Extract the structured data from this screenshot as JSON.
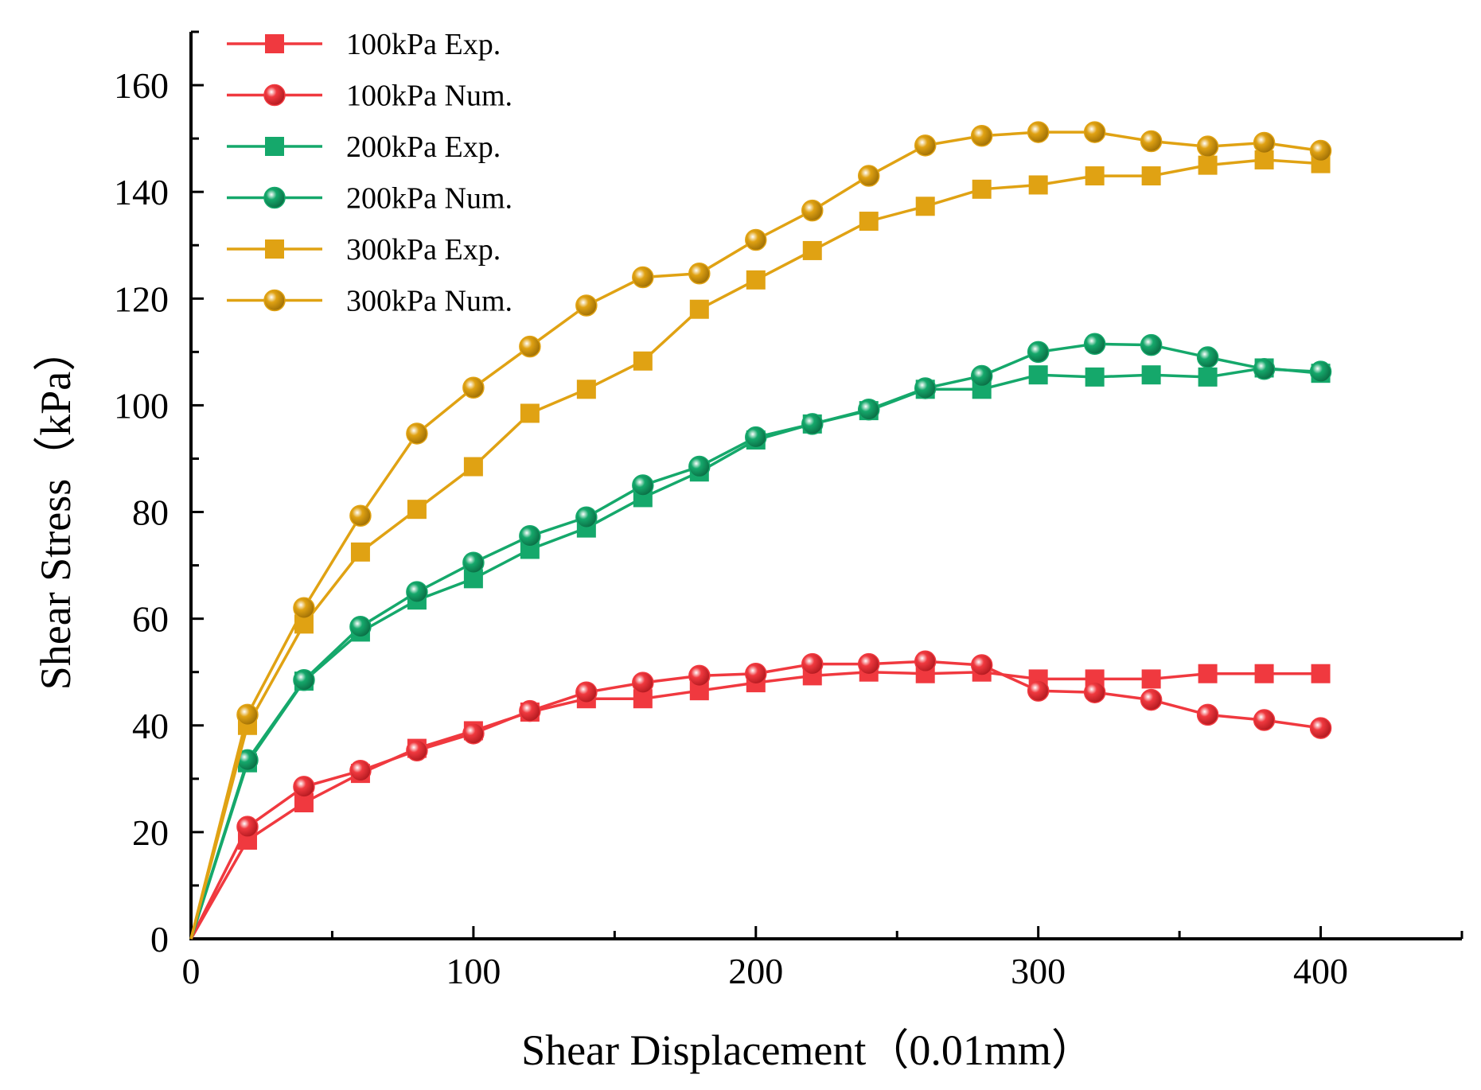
{
  "chart_data": {
    "type": "line",
    "title": "",
    "xlabel": "Shear Displacement（0.01mm）",
    "ylabel": "Shear Stress（kPa）",
    "xlim": [
      0,
      450
    ],
    "ylim": [
      0,
      170
    ],
    "xticks": [
      0,
      100,
      200,
      300,
      400
    ],
    "xtick_labels": [
      "0",
      "100",
      "200",
      "300",
      "400"
    ],
    "yticks": [
      0,
      20,
      40,
      60,
      80,
      100,
      120,
      140,
      160
    ],
    "ytick_labels": [
      "0",
      "20",
      "40",
      "60",
      "80",
      "100",
      "120",
      "140",
      "160"
    ],
    "grid": false,
    "legend_position": "top-left",
    "x": [
      0,
      20,
      40,
      60,
      80,
      100,
      120,
      140,
      160,
      180,
      200,
      220,
      240,
      260,
      280,
      300,
      320,
      340,
      360,
      380,
      400
    ],
    "series": [
      {
        "name": "100kPa Exp.",
        "marker": "square",
        "color": "#f0393f",
        "values": [
          0,
          18.5,
          25.5,
          31,
          35.7,
          39,
          42.5,
          45,
          45,
          46.5,
          48,
          49.3,
          50,
          49.7,
          50,
          48.7,
          48.7,
          48.7,
          49.7,
          49.7,
          49.7
        ]
      },
      {
        "name": "100kPa Num.",
        "marker": "sphere",
        "color": "#f0393f",
        "values": [
          0,
          21,
          28.5,
          31.5,
          35.3,
          38.5,
          42.7,
          46.2,
          48,
          49.3,
          49.7,
          51.5,
          51.5,
          52,
          51.3,
          46.5,
          46.2,
          44.8,
          42,
          41,
          39.5
        ]
      },
      {
        "name": "200kPa Exp.",
        "marker": "square",
        "color": "#15a86b",
        "values": [
          0,
          33,
          48.3,
          57.5,
          63.5,
          67.5,
          73,
          77,
          82.7,
          87.5,
          93.5,
          96.5,
          99,
          103,
          103,
          105.7,
          105.3,
          105.7,
          105.3,
          107,
          106
        ]
      },
      {
        "name": "200kPa Num.",
        "marker": "sphere",
        "color": "#15a86b",
        "values": [
          0,
          33.5,
          48.5,
          58.5,
          65,
          70.5,
          75.5,
          79,
          85,
          88.5,
          94,
          96.5,
          99.2,
          103.2,
          105.5,
          110,
          111.5,
          111.3,
          109,
          106.8,
          106.3
        ]
      },
      {
        "name": "300kPa Exp.",
        "marker": "square",
        "color": "#e0a213",
        "values": [
          0,
          40,
          59,
          72.5,
          80.5,
          88.5,
          98.5,
          103,
          108.3,
          118,
          123.5,
          129,
          134.5,
          137.3,
          140.5,
          141.3,
          143,
          143,
          145,
          146,
          145.3
        ]
      },
      {
        "name": "300kPa Num.",
        "marker": "sphere",
        "color": "#e0a213",
        "values": [
          0,
          42,
          62,
          79.3,
          94.7,
          103.3,
          111,
          118.7,
          124,
          124.7,
          131,
          136.5,
          143,
          148.7,
          150.5,
          151.2,
          151.2,
          149.5,
          148.5,
          149.2,
          147.7
        ]
      }
    ]
  }
}
